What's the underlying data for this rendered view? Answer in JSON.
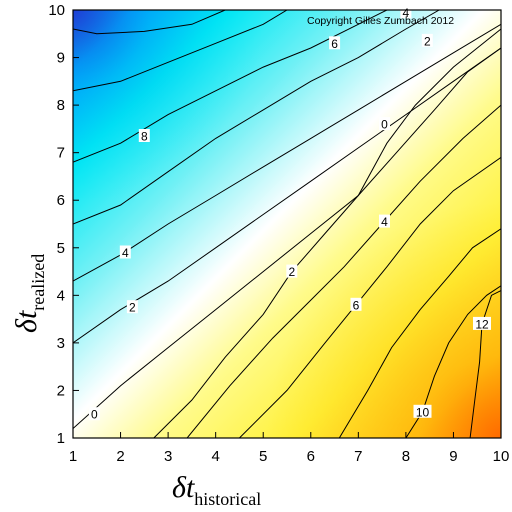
{
  "chart_data": {
    "type": "heatmap",
    "title": "",
    "copyright": "Copyright Gilles Zumbach 2012",
    "xlabel": {
      "symbol": "δt",
      "subscript": "historical"
    },
    "ylabel": {
      "symbol": "δt",
      "subscript": "realized"
    },
    "xlim": [
      1,
      10
    ],
    "ylim": [
      1,
      10
    ],
    "xticks": [
      "1",
      "2",
      "3",
      "4",
      "5",
      "6",
      "7",
      "8",
      "9",
      "10"
    ],
    "yticks": [
      "1",
      "2",
      "3",
      "4",
      "5",
      "6",
      "7",
      "8",
      "9",
      "10"
    ],
    "colorscale": {
      "negative": [
        "#00e8f4",
        "#1f3fd6"
      ],
      "zero": "#ffffff",
      "positive": [
        "#fffc3a",
        "#ff6a00"
      ]
    },
    "grid": false,
    "contour_labels": [
      {
        "value": "0",
        "x": 1.45,
        "y": 1.5
      },
      {
        "value": "2",
        "x": 2.25,
        "y": 3.75
      },
      {
        "value": "4",
        "x": 2.1,
        "y": 4.9
      },
      {
        "value": "8",
        "x": 2.5,
        "y": 7.35
      },
      {
        "value": "6",
        "x": 6.5,
        "y": 9.3
      },
      {
        "value": "4",
        "x": 8.0,
        "y": 9.95
      },
      {
        "value": "2",
        "x": 8.45,
        "y": 9.35
      },
      {
        "value": "0",
        "x": 7.55,
        "y": 7.6
      },
      {
        "value": "4",
        "x": 7.55,
        "y": 5.55
      },
      {
        "value": "2",
        "x": 5.6,
        "y": 4.5
      },
      {
        "value": "6",
        "x": 6.95,
        "y": 3.8
      },
      {
        "value": "12",
        "x": 9.6,
        "y": 3.4
      },
      {
        "value": "10",
        "x": 8.35,
        "y": 1.55
      }
    ],
    "contour_lines": [
      {
        "level": -10,
        "points": [
          [
            1,
            9.6
          ],
          [
            1.5,
            9.5
          ],
          [
            2.5,
            9.55
          ],
          [
            3.5,
            9.7
          ],
          [
            4.2,
            10
          ]
        ]
      },
      {
        "level": -8,
        "points": [
          [
            1,
            8.3
          ],
          [
            2,
            8.5
          ],
          [
            3,
            8.9
          ],
          [
            4,
            9.3
          ],
          [
            5,
            9.7
          ],
          [
            5.5,
            10
          ]
        ]
      },
      {
        "level": -6,
        "points": [
          [
            1,
            6.8
          ],
          [
            2,
            7.2
          ],
          [
            3,
            7.8
          ],
          [
            4,
            8.3
          ],
          [
            5,
            8.8
          ],
          [
            6,
            9.2
          ],
          [
            7,
            9.7
          ],
          [
            7.6,
            10
          ]
        ]
      },
      {
        "level": -4,
        "points": [
          [
            1,
            5.5
          ],
          [
            2,
            5.9
          ],
          [
            3,
            6.6
          ],
          [
            4,
            7.3
          ],
          [
            5,
            7.9
          ],
          [
            6,
            8.5
          ],
          [
            7,
            9
          ],
          [
            8,
            9.6
          ],
          [
            8.7,
            10
          ]
        ]
      },
      {
        "level": -4,
        "points": [
          [
            1,
            4.3
          ],
          [
            2,
            4.85
          ],
          [
            3,
            5.5
          ],
          [
            4,
            6.1
          ],
          [
            5,
            6.7
          ],
          [
            6,
            7.3
          ],
          [
            7,
            7.9
          ],
          [
            8,
            8.5
          ],
          [
            9,
            9.1
          ],
          [
            10,
            9.7
          ]
        ]
      },
      {
        "level": -2,
        "points": [
          [
            1,
            3.0
          ],
          [
            2,
            3.7
          ],
          [
            3,
            4.3
          ],
          [
            4,
            5
          ],
          [
            5,
            5.7
          ],
          [
            6,
            6.4
          ],
          [
            7,
            7.1
          ],
          [
            8,
            7.8
          ],
          [
            9,
            8.5
          ],
          [
            10,
            9.2
          ]
        ]
      },
      {
        "level": 0,
        "points": [
          [
            1,
            1.2
          ],
          [
            2,
            2.1
          ],
          [
            3,
            2.9
          ],
          [
            4,
            3.7
          ],
          [
            5,
            4.5
          ],
          [
            6,
            5.3
          ],
          [
            7,
            6.1
          ],
          [
            7.6,
            7.2
          ],
          [
            8.2,
            8
          ],
          [
            9,
            8.8
          ],
          [
            10,
            9.6
          ]
        ]
      },
      {
        "level": 2,
        "points": [
          [
            2.7,
            1
          ],
          [
            3.5,
            1.8
          ],
          [
            4.2,
            2.7
          ],
          [
            5,
            3.6
          ],
          [
            5.6,
            4.5
          ],
          [
            6.3,
            5.3
          ],
          [
            7,
            6.1
          ],
          [
            7.8,
            7
          ],
          [
            8.6,
            7.9
          ],
          [
            9.3,
            8.7
          ],
          [
            10,
            9.2
          ]
        ]
      },
      {
        "level": 4,
        "points": [
          [
            3.4,
            1
          ],
          [
            4.3,
            2.1
          ],
          [
            5.2,
            3.1
          ],
          [
            6,
            3.9
          ],
          [
            6.7,
            4.6
          ],
          [
            7.5,
            5.5
          ],
          [
            8.3,
            6.4
          ],
          [
            9.2,
            7.3
          ],
          [
            10,
            8
          ]
        ]
      },
      {
        "level": 6,
        "points": [
          [
            4.5,
            1
          ],
          [
            5.5,
            2
          ],
          [
            6.3,
            3
          ],
          [
            6.95,
            3.8
          ],
          [
            7.6,
            4.6
          ],
          [
            8.3,
            5.5
          ],
          [
            9,
            6.2
          ],
          [
            10,
            6.9
          ]
        ]
      },
      {
        "level": 8,
        "points": [
          [
            6.6,
            1
          ],
          [
            7.2,
            2
          ],
          [
            7.7,
            2.9
          ],
          [
            8.3,
            3.7
          ],
          [
            8.9,
            4.4
          ],
          [
            9.4,
            5
          ],
          [
            10,
            5.4
          ]
        ]
      },
      {
        "level": 10,
        "points": [
          [
            8.0,
            1
          ],
          [
            8.35,
            1.55
          ],
          [
            8.6,
            2.3
          ],
          [
            8.9,
            3
          ],
          [
            9.3,
            3.6
          ],
          [
            9.7,
            4.0
          ],
          [
            10,
            4.2
          ]
        ]
      },
      {
        "level": 12,
        "points": [
          [
            9.35,
            1
          ],
          [
            9.45,
            1.8
          ],
          [
            9.55,
            2.6
          ],
          [
            9.6,
            3.4
          ],
          [
            9.8,
            4.0
          ],
          [
            10,
            4.1
          ]
        ]
      }
    ]
  }
}
